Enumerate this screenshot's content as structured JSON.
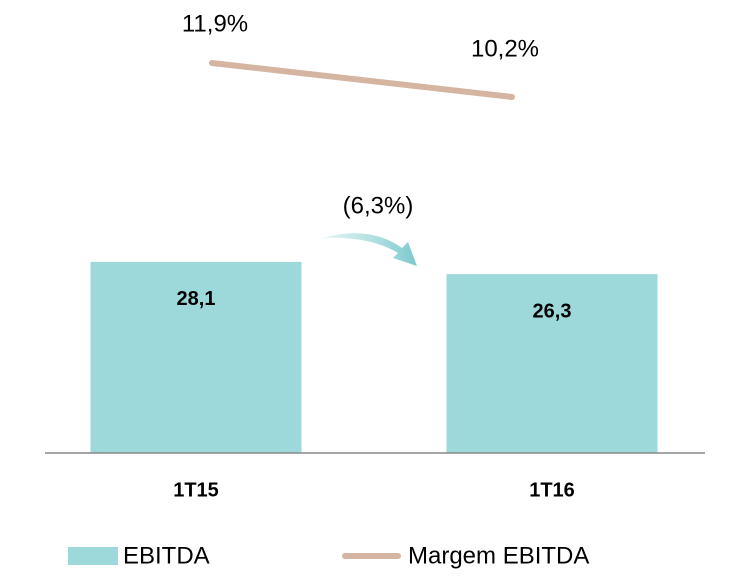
{
  "chart_data": {
    "type": "bar",
    "categories": [
      "1T15",
      "1T16"
    ],
    "series": [
      {
        "name": "EBITDA",
        "color": "#9dd8da",
        "values": [
          28.1,
          26.3
        ],
        "value_labels": [
          "28,1",
          "26,3"
        ]
      },
      {
        "name": "Margem EBITDA",
        "color": "#d5b5a1",
        "type": "line",
        "axis": "y2",
        "values": [
          11.9,
          10.2
        ],
        "value_labels": [
          "11,9%",
          "10,2%"
        ]
      }
    ],
    "annotations": [
      "(6,3%)"
    ],
    "ylim": [
      0,
      60
    ],
    "y2lim": [
      8,
      14
    ],
    "legend": "bottom"
  }
}
